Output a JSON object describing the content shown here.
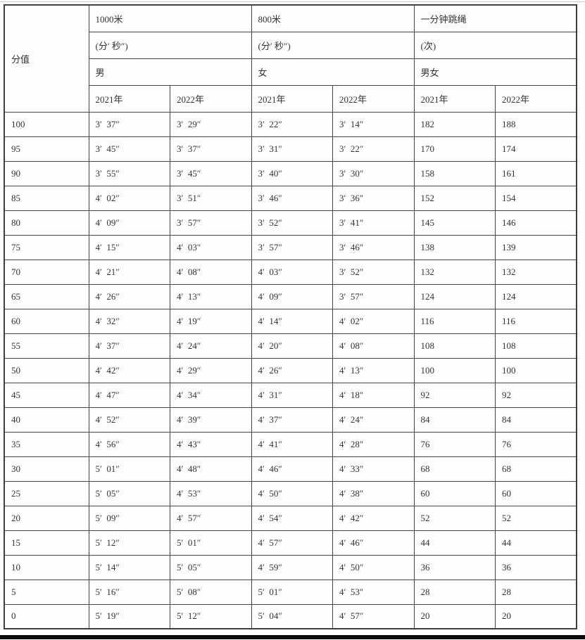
{
  "table": {
    "header": {
      "score_label": "分值",
      "groups": [
        {
          "title": "1000米",
          "unit": "(分′ 秒″)",
          "gender": "男"
        },
        {
          "title": "800米",
          "unit": "(分′ 秒″)",
          "gender": "女"
        },
        {
          "title": "一分钟跳绳",
          "unit": "(次)",
          "gender": "男女"
        }
      ],
      "year_cols": [
        "2021年",
        "2022年",
        "2021年",
        "2022年",
        "2021年",
        "2022年"
      ]
    },
    "rows": [
      {
        "score": "100",
        "cells": [
          "3′  37″",
          "3′  29″",
          "3′  22″",
          "3′  14″",
          "182",
          "188"
        ]
      },
      {
        "score": "95",
        "cells": [
          "3′  45″",
          "3′  37″",
          "3′  31″",
          "3′  22″",
          "170",
          "174"
        ]
      },
      {
        "score": "90",
        "cells": [
          "3′  55″",
          "3′  45″",
          "3′  40″",
          "3′  30″",
          "158",
          "161"
        ]
      },
      {
        "score": "85",
        "cells": [
          "4′  02″",
          "3′  51″",
          "3′  46″",
          "3′  36″",
          "152",
          "154"
        ]
      },
      {
        "score": "80",
        "cells": [
          "4′  09″",
          "3′  57″",
          "3′  52″",
          "3′  41″",
          "145",
          "146"
        ]
      },
      {
        "score": "75",
        "cells": [
          "4′  15″",
          "4′  03″",
          "3′  57″",
          "3′  46″",
          "138",
          "139"
        ]
      },
      {
        "score": "70",
        "cells": [
          "4′  21″",
          "4′  08″",
          "4′  03″",
          "3′  52″",
          "132",
          "132"
        ]
      },
      {
        "score": "65",
        "cells": [
          "4′  26″",
          "4′  13″",
          "4′  09″",
          "3′  57″",
          "124",
          "124"
        ]
      },
      {
        "score": "60",
        "cells": [
          "4′  32″",
          "4′  19″",
          "4′  14″",
          "4′  02″",
          "116",
          "116"
        ]
      },
      {
        "score": "55",
        "cells": [
          "4′  37″",
          "4′  24″",
          "4′  20″",
          "4′  08″",
          "108",
          "108"
        ]
      },
      {
        "score": "50",
        "cells": [
          "4′  42″",
          "4′  29″",
          "4′  26″",
          "4′  13″",
          "100",
          "100"
        ]
      },
      {
        "score": "45",
        "cells": [
          "4′  47″",
          "4′  34″",
          "4′  31″",
          "4′  18″",
          "92",
          "92"
        ]
      },
      {
        "score": "40",
        "cells": [
          "4′  52″",
          "4′  39″",
          "4′  37″",
          "4′  24″",
          "84",
          "84"
        ]
      },
      {
        "score": "35",
        "cells": [
          "4′  56″",
          "4′  43″",
          "4′  41″",
          "4′  28″",
          "76",
          "76"
        ]
      },
      {
        "score": "30",
        "cells": [
          "5′  01″",
          "4′  48″",
          "4′  46″",
          "4′  33″",
          "68",
          "68"
        ]
      },
      {
        "score": "25",
        "cells": [
          "5′  05″",
          "4′  53″",
          "4′  50″",
          "4′  38″",
          "60",
          "60"
        ]
      },
      {
        "score": "20",
        "cells": [
          "5′  09″",
          "4′  57″",
          "4′  54″",
          "4′  42″",
          "52",
          "52"
        ]
      },
      {
        "score": "15",
        "cells": [
          "5′  12″",
          "5′  01″",
          "4′  57″",
          "4′  46″",
          "44",
          "44"
        ]
      },
      {
        "score": "10",
        "cells": [
          "5′  14″",
          "5′  05″",
          "4′  59″",
          "4′  50″",
          "36",
          "36"
        ]
      },
      {
        "score": "5",
        "cells": [
          "5′  16″",
          "5′  08″",
          "5′  01″",
          "4′  53″",
          "28",
          "28"
        ]
      },
      {
        "score": "0",
        "cells": [
          "5′  19″",
          "5′  12″",
          "5′  04″",
          "4′  57″",
          "20",
          "20"
        ]
      }
    ]
  },
  "colors": {
    "text": "#333333",
    "grid_line": "#454545",
    "top_rule": "#c9c9c9",
    "bottom_bar": "#0a0a0a",
    "background": "#fefefe"
  }
}
